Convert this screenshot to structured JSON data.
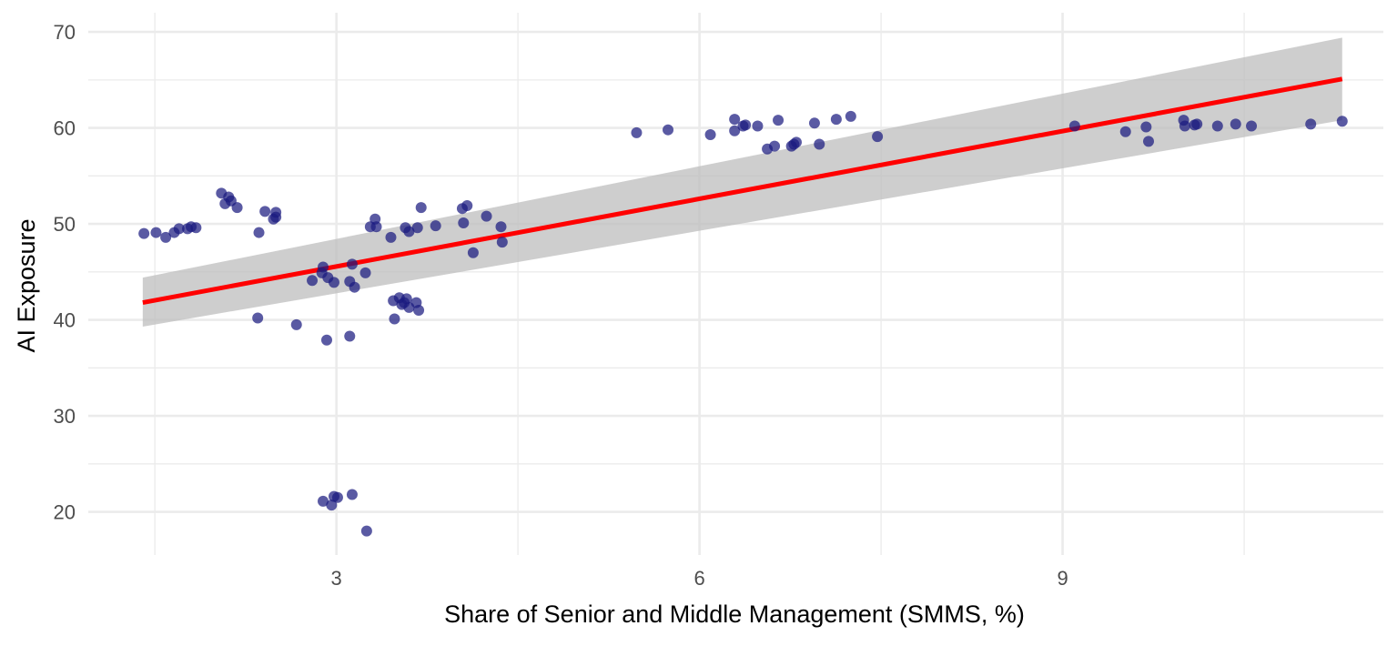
{
  "chart_data": {
    "type": "scatter",
    "title": "",
    "xlabel": "Share of Senior and Middle Management (SMMS, %)",
    "ylabel": "AI Exposure",
    "xlim": [
      0.95,
      11.65
    ],
    "ylim": [
      15.5,
      72
    ],
    "x_ticks": [
      3,
      6,
      9
    ],
    "x_minor_ticks": [
      1.5,
      4.5,
      7.5,
      10.5
    ],
    "y_ticks": [
      20,
      30,
      40,
      50,
      60,
      70
    ],
    "y_minor_ticks": [
      25,
      35,
      45,
      55,
      65
    ],
    "grid": true,
    "legend": "none",
    "colors": {
      "points": "#1a1a80",
      "fit_line": "#ff0000",
      "confidence_band": "#bdbdbd",
      "grid": "#ebebeb"
    },
    "points": [
      {
        "x": 1.41,
        "y": 49.0
      },
      {
        "x": 1.51,
        "y": 49.1
      },
      {
        "x": 1.59,
        "y": 48.6
      },
      {
        "x": 1.66,
        "y": 49.1
      },
      {
        "x": 1.7,
        "y": 49.5
      },
      {
        "x": 1.77,
        "y": 49.5
      },
      {
        "x": 1.8,
        "y": 49.7
      },
      {
        "x": 1.84,
        "y": 49.6
      },
      {
        "x": 2.05,
        "y": 53.2
      },
      {
        "x": 2.08,
        "y": 52.1
      },
      {
        "x": 2.11,
        "y": 52.8
      },
      {
        "x": 2.13,
        "y": 52.4
      },
      {
        "x": 2.18,
        "y": 51.7
      },
      {
        "x": 2.35,
        "y": 40.2
      },
      {
        "x": 2.36,
        "y": 49.1
      },
      {
        "x": 2.41,
        "y": 51.3
      },
      {
        "x": 2.5,
        "y": 51.2
      },
      {
        "x": 2.48,
        "y": 50.5
      },
      {
        "x": 2.5,
        "y": 50.7
      },
      {
        "x": 2.67,
        "y": 39.5
      },
      {
        "x": 2.8,
        "y": 44.1
      },
      {
        "x": 2.88,
        "y": 44.9
      },
      {
        "x": 2.89,
        "y": 45.5
      },
      {
        "x": 2.93,
        "y": 44.4
      },
      {
        "x": 2.92,
        "y": 37.9
      },
      {
        "x": 2.98,
        "y": 43.9
      },
      {
        "x": 3.11,
        "y": 44.0
      },
      {
        "x": 3.13,
        "y": 45.8
      },
      {
        "x": 3.15,
        "y": 43.4
      },
      {
        "x": 3.11,
        "y": 38.3
      },
      {
        "x": 3.24,
        "y": 44.9
      },
      {
        "x": 2.89,
        "y": 21.1
      },
      {
        "x": 2.98,
        "y": 21.6
      },
      {
        "x": 3.01,
        "y": 21.5
      },
      {
        "x": 2.96,
        "y": 20.7
      },
      {
        "x": 3.13,
        "y": 21.8
      },
      {
        "x": 3.25,
        "y": 18.0
      },
      {
        "x": 3.28,
        "y": 49.7
      },
      {
        "x": 3.32,
        "y": 50.5
      },
      {
        "x": 3.33,
        "y": 49.7
      },
      {
        "x": 3.45,
        "y": 48.6
      },
      {
        "x": 3.47,
        "y": 42.0
      },
      {
        "x": 3.48,
        "y": 40.1
      },
      {
        "x": 3.52,
        "y": 42.3
      },
      {
        "x": 3.54,
        "y": 41.6
      },
      {
        "x": 3.56,
        "y": 41.8
      },
      {
        "x": 3.58,
        "y": 42.2
      },
      {
        "x": 3.6,
        "y": 41.3
      },
      {
        "x": 3.66,
        "y": 41.8
      },
      {
        "x": 3.68,
        "y": 41.0
      },
      {
        "x": 3.57,
        "y": 49.6
      },
      {
        "x": 3.6,
        "y": 49.2
      },
      {
        "x": 3.67,
        "y": 49.6
      },
      {
        "x": 3.7,
        "y": 51.7
      },
      {
        "x": 3.82,
        "y": 49.8
      },
      {
        "x": 4.04,
        "y": 51.6
      },
      {
        "x": 4.08,
        "y": 51.9
      },
      {
        "x": 4.05,
        "y": 50.1
      },
      {
        "x": 4.13,
        "y": 47.0
      },
      {
        "x": 4.24,
        "y": 50.8
      },
      {
        "x": 4.36,
        "y": 49.7
      },
      {
        "x": 4.37,
        "y": 48.1
      },
      {
        "x": 5.48,
        "y": 59.5
      },
      {
        "x": 5.74,
        "y": 59.8
      },
      {
        "x": 6.09,
        "y": 59.3
      },
      {
        "x": 6.29,
        "y": 60.9
      },
      {
        "x": 6.29,
        "y": 59.7
      },
      {
        "x": 6.36,
        "y": 60.2
      },
      {
        "x": 6.38,
        "y": 60.3
      },
      {
        "x": 6.48,
        "y": 60.2
      },
      {
        "x": 6.56,
        "y": 57.8
      },
      {
        "x": 6.62,
        "y": 58.1
      },
      {
        "x": 6.65,
        "y": 60.8
      },
      {
        "x": 6.76,
        "y": 58.1
      },
      {
        "x": 6.78,
        "y": 58.3
      },
      {
        "x": 6.8,
        "y": 58.5
      },
      {
        "x": 6.95,
        "y": 60.5
      },
      {
        "x": 6.99,
        "y": 58.3
      },
      {
        "x": 7.13,
        "y": 60.9
      },
      {
        "x": 7.25,
        "y": 61.2
      },
      {
        "x": 7.47,
        "y": 59.1
      },
      {
        "x": 9.1,
        "y": 60.2
      },
      {
        "x": 9.52,
        "y": 59.6
      },
      {
        "x": 9.69,
        "y": 60.1
      },
      {
        "x": 9.71,
        "y": 58.6
      },
      {
        "x": 10.0,
        "y": 60.8
      },
      {
        "x": 10.01,
        "y": 60.2
      },
      {
        "x": 10.09,
        "y": 60.3
      },
      {
        "x": 10.11,
        "y": 60.4
      },
      {
        "x": 10.28,
        "y": 60.2
      },
      {
        "x": 10.43,
        "y": 60.4
      },
      {
        "x": 10.56,
        "y": 60.2
      },
      {
        "x": 11.05,
        "y": 60.4
      },
      {
        "x": 11.31,
        "y": 60.7
      }
    ],
    "fit_line": {
      "x": [
        1.4,
        11.31
      ],
      "y": [
        41.8,
        65.1
      ]
    },
    "confidence_band": {
      "x": [
        1.4,
        11.31
      ],
      "lower": [
        39.3,
        60.8
      ],
      "upper": [
        44.4,
        69.4
      ]
    }
  }
}
